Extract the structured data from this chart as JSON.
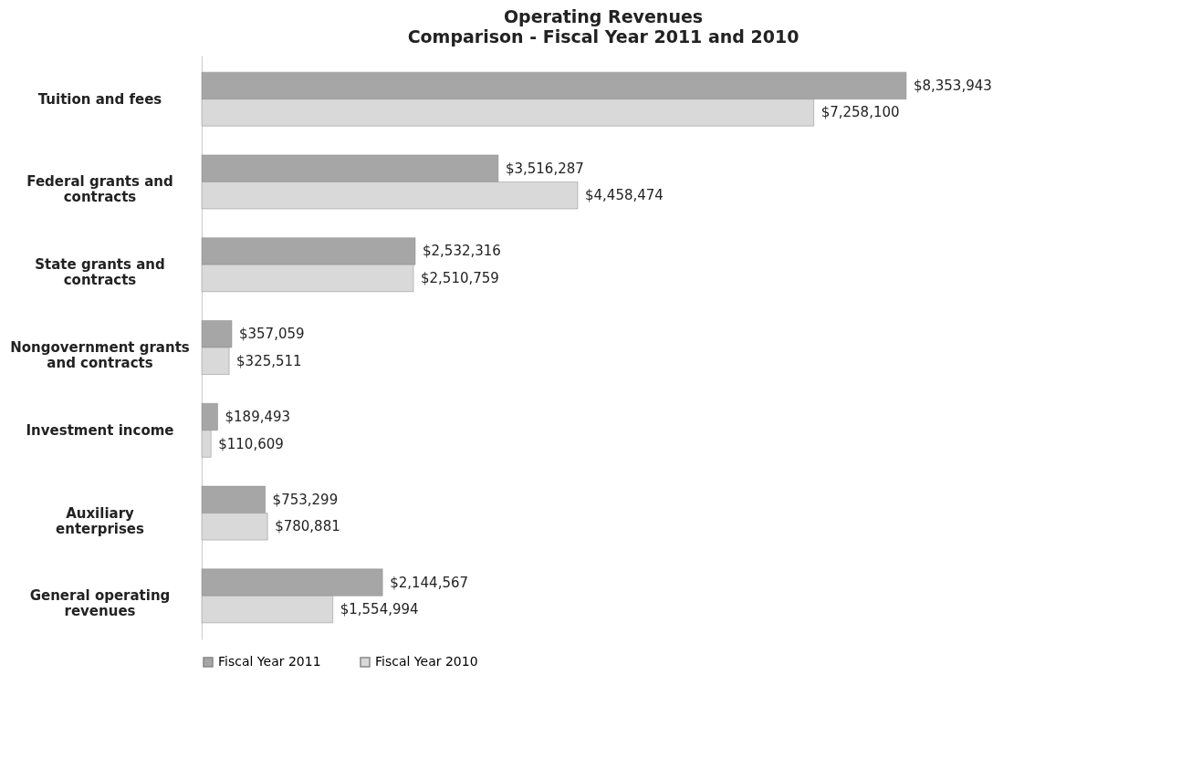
{
  "chart_data": {
    "type": "bar",
    "orientation": "horizontal",
    "title": "Operating Revenues",
    "subtitle": "Comparison - Fiscal Year 2011 and 2010",
    "categories": [
      "Tuition and fees",
      "Federal grants and contracts",
      "State grants and contracts",
      "Nongovernment grants and contracts",
      "Investment income",
      "Auxiliary enterprises",
      "General operating revenues"
    ],
    "series": [
      {
        "name": "Fiscal Year 2011",
        "color": "#a6a6a6",
        "values": [
          8353943,
          3516287,
          2532316,
          357059,
          189493,
          753299,
          2144567
        ],
        "value_labels": [
          "$8,353,943",
          "$3,516,287",
          "$2,532,316",
          "$357,059",
          "$189,493",
          "$753,299",
          "$2,144,567"
        ]
      },
      {
        "name": "Fiscal Year 2010",
        "color": "#d9d9d9",
        "values": [
          7258100,
          4458474,
          2510759,
          325511,
          110609,
          780881,
          1554994
        ],
        "value_labels": [
          "$7,258,100",
          "$4,458,474",
          "$2,510,759",
          "$325,511",
          "$110,609",
          "$780,881",
          "$1,554,994"
        ]
      }
    ],
    "legend": "bottom",
    "grid": false
  }
}
